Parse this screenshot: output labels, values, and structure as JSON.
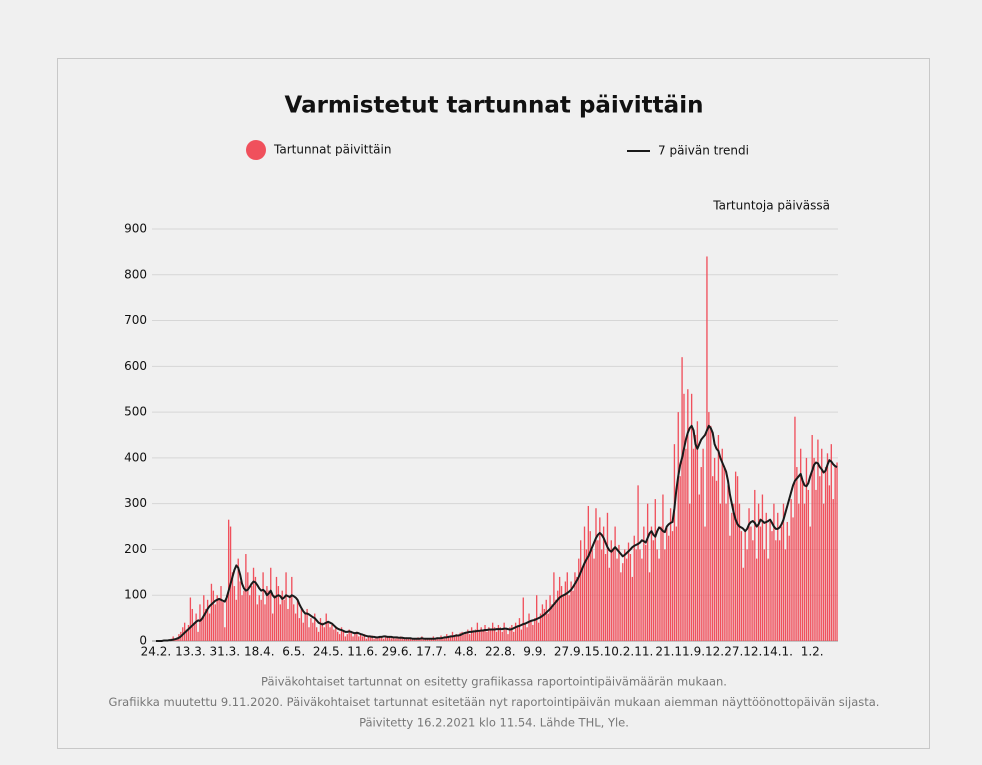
{
  "chart_data": {
    "type": "bar",
    "title": "Varmistetut tartunnat päivittäin",
    "y_label": "Tartuntoja päivässä",
    "notes": [
      "Päiväkohtaiset tartunnat on esitetty grafiikassa raportointipäivämäärän mukaan.",
      "Grafiikka muutettu 9.11.2020. Päiväkohtaiset tartunnat esitetään nyt raportointipäivän mukaan aiemman näyttöönottopäivän sijasta.",
      "Päivitetty 16.2.2021 klo 11.54. Lähde THL, Yle."
    ],
    "ylim": [
      0,
      900
    ],
    "yticks": [
      0,
      100,
      200,
      300,
      400,
      500,
      600,
      700,
      800,
      900
    ],
    "grid": true,
    "categories": [
      "24.2.",
      null,
      null,
      null,
      null,
      null,
      null,
      null,
      null,
      null,
      null,
      null,
      null,
      null,
      null,
      null,
      null,
      null,
      "13.3.",
      null,
      null,
      null,
      null,
      null,
      null,
      null,
      null,
      null,
      null,
      null,
      null,
      null,
      null,
      null,
      null,
      null,
      "31.3.",
      null,
      null,
      null,
      null,
      null,
      null,
      null,
      null,
      null,
      null,
      null,
      null,
      null,
      null,
      null,
      null,
      null,
      "18.4.",
      null,
      null,
      null,
      null,
      null,
      null,
      null,
      null,
      null,
      null,
      null,
      null,
      null,
      null,
      null,
      null,
      null,
      "6.5.",
      null,
      null,
      null,
      null,
      null,
      null,
      null,
      null,
      null,
      null,
      null,
      null,
      null,
      null,
      null,
      null,
      null,
      "24.5.",
      null,
      null,
      null,
      null,
      null,
      null,
      null,
      null,
      null,
      null,
      null,
      null,
      null,
      null,
      null,
      null,
      null,
      "11.6.",
      null,
      null,
      null,
      null,
      null,
      null,
      null,
      null,
      null,
      null,
      null,
      null,
      null,
      null,
      null,
      null,
      null,
      "29.6.",
      null,
      null,
      null,
      null,
      null,
      null,
      null,
      null,
      null,
      null,
      null,
      null,
      null,
      null,
      null,
      null,
      null,
      "17.7.",
      null,
      null,
      null,
      null,
      null,
      null,
      null,
      null,
      null,
      null,
      null,
      null,
      null,
      null,
      null,
      null,
      null,
      "4.8.",
      null,
      null,
      null,
      null,
      null,
      null,
      null,
      null,
      null,
      null,
      null,
      null,
      null,
      null,
      null,
      null,
      null,
      "22.8.",
      null,
      null,
      null,
      null,
      null,
      null,
      null,
      null,
      null,
      null,
      null,
      null,
      null,
      null,
      null,
      null,
      null,
      "9.9.",
      null,
      null,
      null,
      null,
      null,
      null,
      null,
      null,
      null,
      null,
      null,
      null,
      null,
      null,
      null,
      null,
      null,
      "27.9.",
      null,
      null,
      null,
      null,
      null,
      null,
      null,
      null,
      null,
      null,
      null,
      null,
      null,
      null,
      null,
      null,
      null,
      "15.10.",
      null,
      null,
      null,
      null,
      null,
      null,
      null,
      null,
      null,
      null,
      null,
      null,
      null,
      null,
      null,
      null,
      null,
      "2.11.",
      null,
      null,
      null,
      null,
      null,
      null,
      null,
      null,
      null,
      null,
      null,
      null,
      null,
      null,
      null,
      null,
      null,
      null,
      "21.11.",
      null,
      null,
      null,
      null,
      null,
      null,
      null,
      null,
      null,
      null,
      null,
      null,
      null,
      null,
      null,
      null,
      null,
      "9.12.",
      null,
      null,
      null,
      null,
      null,
      null,
      null,
      null,
      null,
      null,
      null,
      null,
      null,
      null,
      null,
      null,
      null,
      "27.12.",
      null,
      null,
      null,
      null,
      null,
      null,
      null,
      null,
      null,
      null,
      null,
      null,
      null,
      null,
      null,
      null,
      null,
      "14.1.",
      null,
      null,
      null,
      null,
      null,
      null,
      null,
      null,
      null,
      null,
      null,
      null,
      null,
      null,
      null,
      null,
      null,
      "1.2.",
      null,
      null,
      null,
      null,
      null,
      null,
      null,
      null,
      null,
      null,
      null,
      null,
      null
    ],
    "series": [
      {
        "name": "Tartunnat päivittäin",
        "color": "#f0505c",
        "values": [
          0,
          0,
          1,
          0,
          2,
          1,
          3,
          2,
          5,
          10,
          5,
          8,
          15,
          20,
          30,
          40,
          25,
          35,
          95,
          70,
          40,
          60,
          20,
          80,
          50,
          100,
          70,
          90,
          60,
          125,
          110,
          80,
          100,
          90,
          120,
          85,
          30,
          100,
          265,
          250,
          150,
          120,
          90,
          180,
          130,
          100,
          110,
          190,
          150,
          100,
          120,
          160,
          140,
          80,
          100,
          90,
          150,
          80,
          120,
          110,
          160,
          60,
          100,
          140,
          120,
          80,
          110,
          90,
          150,
          70,
          100,
          140,
          80,
          60,
          90,
          50,
          70,
          40,
          60,
          70,
          30,
          50,
          40,
          60,
          30,
          20,
          50,
          40,
          30,
          60,
          40,
          30,
          35,
          25,
          30,
          20,
          15,
          30,
          20,
          10,
          15,
          25,
          20,
          10,
          15,
          20,
          10,
          15,
          10,
          15,
          5,
          10,
          8,
          12,
          5,
          10,
          6,
          8,
          10,
          5,
          12,
          8,
          10,
          6,
          8,
          5,
          8,
          5,
          10,
          6,
          4,
          8,
          5,
          7,
          3,
          6,
          4,
          8,
          5,
          10,
          3,
          6,
          4,
          5,
          5,
          10,
          3,
          8,
          4,
          12,
          6,
          10,
          15,
          8,
          12,
          20,
          10,
          15,
          12,
          18,
          20,
          15,
          20,
          25,
          15,
          30,
          20,
          25,
          40,
          20,
          30,
          25,
          35,
          20,
          30,
          25,
          40,
          30,
          20,
          35,
          30,
          20,
          40,
          25,
          15,
          30,
          35,
          20,
          40,
          30,
          50,
          25,
          95,
          40,
          30,
          60,
          45,
          35,
          50,
          100,
          40,
          60,
          80,
          70,
          90,
          60,
          100,
          80,
          150,
          90,
          110,
          140,
          120,
          100,
          130,
          150,
          100,
          130,
          110,
          150,
          140,
          180,
          220,
          160,
          250,
          200,
          295,
          240,
          200,
          180,
          290,
          220,
          270,
          200,
          250,
          190,
          280,
          160,
          220,
          200,
          250,
          180,
          210,
          150,
          170,
          200,
          180,
          215,
          190,
          140,
          230,
          200,
          340,
          200,
          180,
          250,
          210,
          300,
          150,
          250,
          220,
          310,
          200,
          180,
          250,
          320,
          200,
          250,
          230,
          290,
          240,
          430,
          250,
          500,
          360,
          620,
          540,
          420,
          550,
          300,
          540,
          420,
          450,
          480,
          320,
          380,
          420,
          250,
          840,
          500,
          470,
          360,
          400,
          350,
          450,
          300,
          420,
          380,
          300,
          340,
          230,
          280,
          300,
          370,
          360,
          300,
          240,
          160,
          240,
          200,
          290,
          250,
          220,
          330,
          180,
          300,
          250,
          320,
          200,
          280,
          180,
          260,
          240,
          300,
          220,
          280,
          220,
          250,
          300,
          200,
          260,
          230,
          310,
          270,
          490,
          380,
          300,
          420,
          350,
          300,
          400,
          330,
          250,
          450,
          400,
          330,
          440,
          360,
          420,
          300,
          380,
          410,
          340,
          430,
          310,
          380,
          390
        ]
      },
      {
        "name": "7 päivän trendi",
        "type": "line",
        "color": "#1a1a1a",
        "values": [
          0,
          0,
          0,
          0,
          1,
          1,
          1,
          2,
          2,
          3,
          4,
          5,
          7,
          10,
          14,
          18,
          22,
          26,
          30,
          34,
          38,
          42,
          45,
          44,
          48,
          55,
          62,
          70,
          76,
          80,
          84,
          88,
          90,
          92,
          90,
          88,
          86,
          95,
          110,
          125,
          140,
          155,
          165,
          160,
          145,
          125,
          115,
          110,
          112,
          118,
          125,
          130,
          128,
          122,
          115,
          110,
          112,
          108,
          100,
          104,
          110,
          100,
          95,
          98,
          100,
          98,
          92,
          95,
          100,
          98,
          96,
          100,
          98,
          95,
          90,
          80,
          72,
          65,
          60,
          60,
          58,
          55,
          52,
          50,
          45,
          40,
          38,
          36,
          38,
          40,
          42,
          40,
          38,
          34,
          30,
          27,
          25,
          24,
          22,
          20,
          20,
          21,
          20,
          18,
          17,
          18,
          17,
          15,
          14,
          12,
          11,
          10,
          10,
          9,
          9,
          8,
          8,
          9,
          9,
          10,
          10,
          9,
          9,
          9,
          8,
          8,
          8,
          7,
          7,
          7,
          6,
          6,
          6,
          6,
          5,
          5,
          5,
          5,
          5,
          6,
          5,
          5,
          5,
          5,
          5,
          5,
          5,
          6,
          6,
          6,
          7,
          8,
          8,
          9,
          10,
          10,
          11,
          12,
          12,
          13,
          15,
          17,
          18,
          19,
          20,
          20,
          21,
          21,
          22,
          22,
          23,
          23,
          24,
          24,
          25,
          25,
          25,
          25,
          26,
          26,
          26,
          26,
          27,
          27,
          26,
          25,
          26,
          28,
          30,
          32,
          33,
          35,
          37,
          38,
          40,
          42,
          44,
          45,
          46,
          48,
          50,
          52,
          55,
          58,
          62,
          66,
          70,
          75,
          80,
          85,
          90,
          95,
          98,
          100,
          102,
          105,
          108,
          112,
          118,
          125,
          132,
          140,
          150,
          160,
          170,
          178,
          185,
          195,
          205,
          215,
          225,
          232,
          236,
          232,
          225,
          215,
          205,
          198,
          195,
          200,
          205,
          200,
          195,
          190,
          185,
          188,
          192,
          196,
          200,
          205,
          208,
          210,
          212,
          215,
          220,
          218,
          215,
          225,
          235,
          240,
          232,
          228,
          240,
          248,
          245,
          240,
          238,
          250,
          255,
          258,
          260,
          290,
          330,
          360,
          385,
          400,
          420,
          440,
          455,
          465,
          470,
          460,
          430,
          420,
          430,
          440,
          445,
          450,
          460,
          470,
          465,
          455,
          430,
          420,
          415,
          400,
          390,
          380,
          370,
          350,
          320,
          300,
          280,
          265,
          255,
          250,
          248,
          245,
          240,
          245,
          255,
          260,
          262,
          258,
          250,
          255,
          265,
          262,
          258,
          260,
          262,
          265,
          258,
          250,
          245,
          245,
          248,
          255,
          265,
          280,
          295,
          310,
          325,
          340,
          350,
          355,
          360,
          365,
          350,
          340,
          338,
          345,
          360,
          372,
          385,
          390,
          388,
          380,
          375,
          368,
          372,
          385,
          395,
          392,
          386,
          382,
          380
        ]
      }
    ]
  }
}
